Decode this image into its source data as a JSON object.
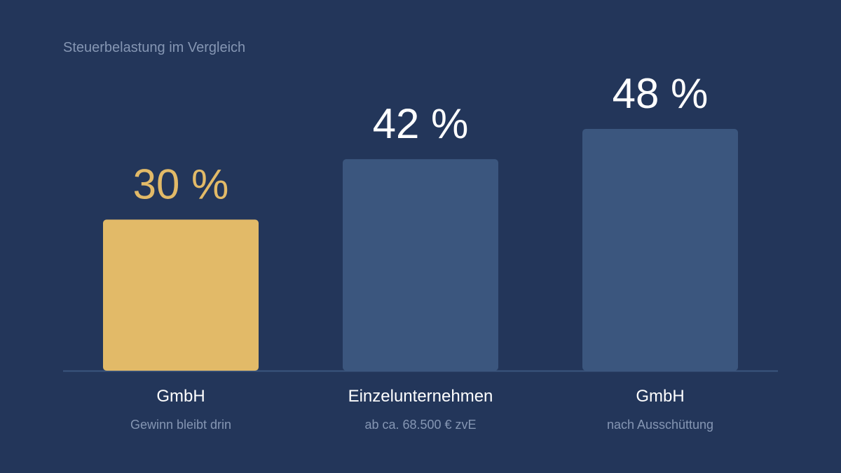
{
  "chart_data": {
    "type": "bar",
    "title": "Steuerbelastung im Vergleich",
    "categories": [
      "GmbH",
      "Einzelunternehmen",
      "GmbH"
    ],
    "subtitles": [
      "Gewinn bleibt drin",
      "ab ca. 68.500 € zvE",
      "nach Ausschüttung"
    ],
    "values": [
      30,
      42,
      48
    ],
    "value_labels": [
      "30 %",
      "42 %",
      "48 %"
    ],
    "unit": "%",
    "ylim": [
      0,
      64
    ],
    "grid": false,
    "legend": "none",
    "highlight_index": 0
  },
  "colors": {
    "background": "#23365a",
    "bar_default": "#3b567e",
    "bar_highlight": "#e2ba68",
    "value_default": "#ffffff",
    "value_highlight": "#e2ba68",
    "baseline": "#3b567e",
    "muted_text": "#8596b3"
  }
}
